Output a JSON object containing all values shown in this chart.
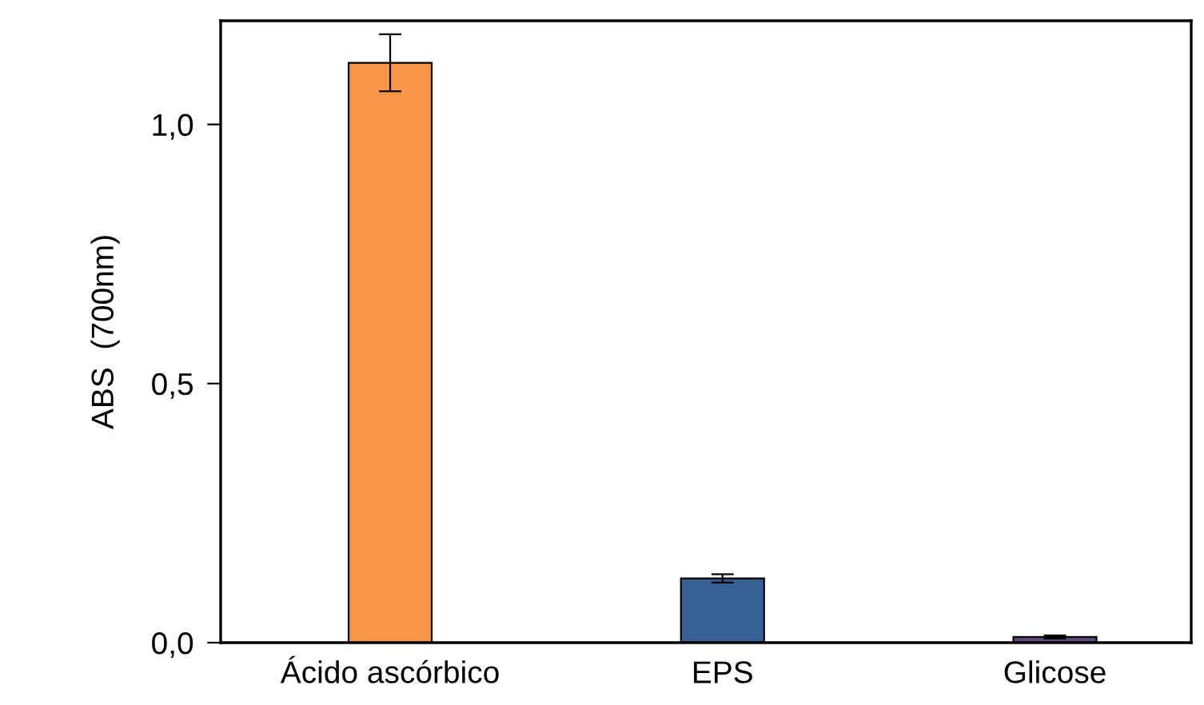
{
  "chart_data": {
    "type": "bar",
    "ylabel": "ABS  (700nm)",
    "categories": [
      "Ácido ascórbico",
      "EPS",
      "Glicose"
    ],
    "values": [
      1.119,
      0.124,
      0.011
    ],
    "errors": [
      0.055,
      0.008,
      0.003
    ],
    "colors": [
      "#f79646",
      "#376092",
      "#604a7b"
    ],
    "ylim": [
      0,
      1.2
    ],
    "yticks": [
      {
        "value": 0,
        "label": "0,0"
      },
      {
        "value": 0.5,
        "label": "0,5"
      },
      {
        "value": 1.0,
        "label": "1,0"
      }
    ],
    "grid": false
  }
}
